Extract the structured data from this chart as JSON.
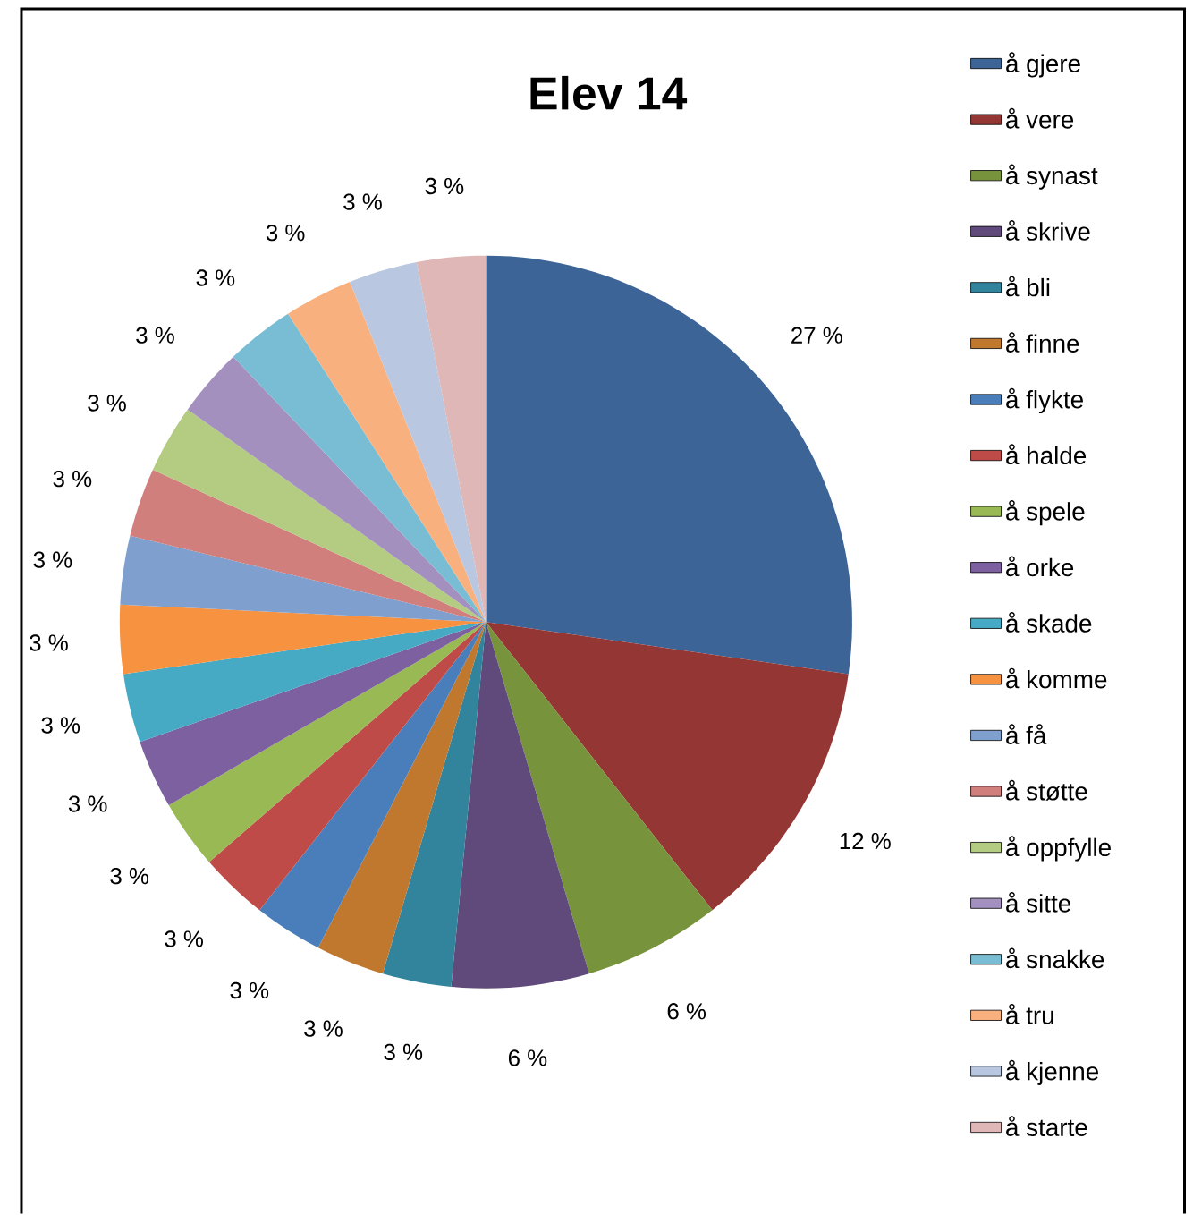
{
  "chart_data": {
    "type": "pie",
    "title": "Elev 14",
    "categories": [
      "å gjere",
      "å vere",
      "å synast",
      "å skrive",
      "å bli",
      "å finne",
      "å flykte",
      "å halde",
      "å spele",
      "å orke",
      "å skade",
      "å komme",
      "å få",
      "å støtte",
      "å oppfylle",
      "å sitte",
      "å snakke",
      "å tru",
      "å kjenne",
      "å starte"
    ],
    "values": [
      27,
      12,
      6,
      6,
      3,
      3,
      3,
      3,
      3,
      3,
      3,
      3,
      3,
      3,
      3,
      3,
      3,
      3,
      3,
      3
    ],
    "value_labels": [
      "27 %",
      "12 %",
      "6 %",
      "6 %",
      "3 %",
      "3 %",
      "3 %",
      "3 %",
      "3 %",
      "3 %",
      "3 %",
      "3 %",
      "3 %",
      "3 %",
      "3 %",
      "3 %",
      "3 %",
      "3 %",
      "3 %",
      "3 %"
    ],
    "colors": [
      "#3c6496",
      "#943634",
      "#77933c",
      "#604a7b",
      "#31849b",
      "#c0782f",
      "#4a7ebb",
      "#be4b48",
      "#98b954",
      "#7d60a0",
      "#46aac5",
      "#f69240",
      "#7f9fcf",
      "#d07f7d",
      "#b3cc82",
      "#a390be",
      "#78bdd4",
      "#f9b07f",
      "#b9c7e0",
      "#dfb7b6"
    ],
    "legend": "right"
  }
}
